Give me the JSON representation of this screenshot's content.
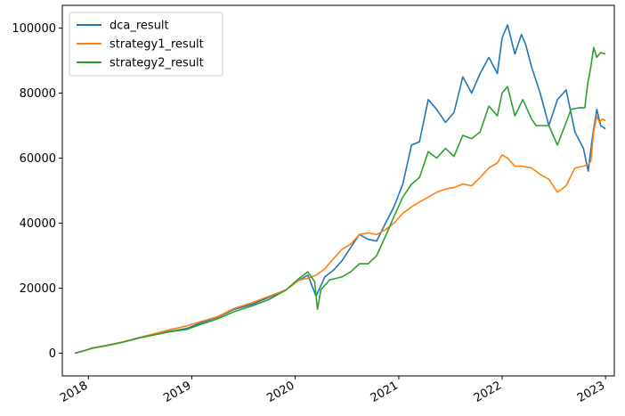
{
  "chart_data": {
    "type": "line",
    "title": "",
    "xlabel": "",
    "ylabel": "",
    "xlim": [
      "2017-10-01",
      "2023-02-01"
    ],
    "ylim": [
      -7000,
      107000
    ],
    "x_ticks": [
      "2018",
      "2019",
      "2020",
      "2021",
      "2022",
      "2023"
    ],
    "y_ticks": [
      "0",
      "20000",
      "40000",
      "60000",
      "80000",
      "100000"
    ],
    "legend_position": "upper-left",
    "grid": false,
    "series": [
      {
        "name": "dca_result",
        "color": "#1f77b4",
        "points": [
          [
            "2017-11-15",
            0
          ],
          [
            "2017-12-15",
            700
          ],
          [
            "2018-01-15",
            1600
          ],
          [
            "2018-03-01",
            2300
          ],
          [
            "2018-05-01",
            3400
          ],
          [
            "2018-07-01",
            4800
          ],
          [
            "2018-09-01",
            6100
          ],
          [
            "2018-10-15",
            6700
          ],
          [
            "2018-12-15",
            7600
          ],
          [
            "2019-02-01",
            9300
          ],
          [
            "2019-04-01",
            11000
          ],
          [
            "2019-06-01",
            13500
          ],
          [
            "2019-08-01",
            15000
          ],
          [
            "2019-10-01",
            17200
          ],
          [
            "2019-12-01",
            19500
          ],
          [
            "2020-01-15",
            22500
          ],
          [
            "2020-02-15",
            24000
          ],
          [
            "2020-03-15",
            17500
          ],
          [
            "2020-04-15",
            23500
          ],
          [
            "2020-05-15",
            25500
          ],
          [
            "2020-06-15",
            28500
          ],
          [
            "2020-07-15",
            32500
          ],
          [
            "2020-08-15",
            36500
          ],
          [
            "2020-09-15",
            35000
          ],
          [
            "2020-10-15",
            34500
          ],
          [
            "2020-11-15",
            40000
          ],
          [
            "2020-12-15",
            45000
          ],
          [
            "2021-01-15",
            52000
          ],
          [
            "2021-02-15",
            64000
          ],
          [
            "2021-03-15",
            65000
          ],
          [
            "2021-04-15",
            78000
          ],
          [
            "2021-05-15",
            75000
          ],
          [
            "2021-06-15",
            71000
          ],
          [
            "2021-07-15",
            74000
          ],
          [
            "2021-08-15",
            85000
          ],
          [
            "2021-09-15",
            80000
          ],
          [
            "2021-10-15",
            86000
          ],
          [
            "2021-11-15",
            91000
          ],
          [
            "2021-12-15",
            86000
          ],
          [
            "2022-01-01",
            97000
          ],
          [
            "2022-01-20",
            101000
          ],
          [
            "2022-02-15",
            92000
          ],
          [
            "2022-03-10",
            98000
          ],
          [
            "2022-03-25",
            95000
          ],
          [
            "2022-04-15",
            88000
          ],
          [
            "2022-05-15",
            80000
          ],
          [
            "2022-06-15",
            70000
          ],
          [
            "2022-07-15",
            78000
          ],
          [
            "2022-08-15",
            81000
          ],
          [
            "2022-09-15",
            68000
          ],
          [
            "2022-10-15",
            63000
          ],
          [
            "2022-11-01",
            56000
          ],
          [
            "2022-11-15",
            66000
          ],
          [
            "2022-12-01",
            75000
          ],
          [
            "2022-12-15",
            70000
          ],
          [
            "2023-01-01",
            69000
          ]
        ]
      },
      {
        "name": "strategy1_result",
        "color": "#ff7f0e",
        "points": [
          [
            "2017-11-15",
            0
          ],
          [
            "2017-12-15",
            700
          ],
          [
            "2018-01-15",
            1600
          ],
          [
            "2018-03-01",
            2300
          ],
          [
            "2018-05-01",
            3400
          ],
          [
            "2018-07-01",
            4800
          ],
          [
            "2018-09-01",
            6200
          ],
          [
            "2018-10-15",
            7200
          ],
          [
            "2018-12-15",
            8400
          ],
          [
            "2019-02-01",
            9700
          ],
          [
            "2019-04-01",
            11200
          ],
          [
            "2019-06-01",
            13800
          ],
          [
            "2019-08-01",
            15500
          ],
          [
            "2019-10-01",
            17500
          ],
          [
            "2019-12-01",
            19500
          ],
          [
            "2020-01-15",
            22500
          ],
          [
            "2020-02-15",
            23000
          ],
          [
            "2020-03-15",
            24000
          ],
          [
            "2020-04-15",
            26000
          ],
          [
            "2020-05-15",
            29000
          ],
          [
            "2020-06-15",
            32000
          ],
          [
            "2020-07-15",
            33500
          ],
          [
            "2020-08-15",
            36500
          ],
          [
            "2020-09-15",
            37000
          ],
          [
            "2020-10-15",
            36500
          ],
          [
            "2020-11-15",
            38000
          ],
          [
            "2020-12-15",
            40000
          ],
          [
            "2021-01-15",
            43000
          ],
          [
            "2021-02-15",
            45000
          ],
          [
            "2021-03-15",
            46500
          ],
          [
            "2021-04-15",
            48000
          ],
          [
            "2021-05-15",
            49500
          ],
          [
            "2021-06-15",
            50500
          ],
          [
            "2021-07-15",
            51000
          ],
          [
            "2021-08-15",
            52000
          ],
          [
            "2021-09-15",
            51500
          ],
          [
            "2021-10-15",
            54000
          ],
          [
            "2021-11-15",
            57000
          ],
          [
            "2021-12-15",
            58500
          ],
          [
            "2022-01-01",
            61000
          ],
          [
            "2022-01-20",
            60000
          ],
          [
            "2022-02-15",
            57500
          ],
          [
            "2022-03-10",
            57500
          ],
          [
            "2022-04-15",
            57000
          ],
          [
            "2022-05-15",
            55000
          ],
          [
            "2022-06-15",
            53500
          ],
          [
            "2022-07-15",
            49500
          ],
          [
            "2022-08-15",
            51500
          ],
          [
            "2022-09-15",
            57000
          ],
          [
            "2022-10-15",
            57500
          ],
          [
            "2022-11-01",
            58000
          ],
          [
            "2022-11-10",
            59000
          ],
          [
            "2022-11-20",
            68000
          ],
          [
            "2022-12-01",
            73000
          ],
          [
            "2022-12-10",
            71000
          ],
          [
            "2022-12-20",
            72000
          ],
          [
            "2023-01-01",
            71500
          ]
        ]
      },
      {
        "name": "strategy2_result",
        "color": "#2ca02c",
        "points": [
          [
            "2017-11-15",
            0
          ],
          [
            "2017-12-15",
            700
          ],
          [
            "2018-01-15",
            1500
          ],
          [
            "2018-03-01",
            2200
          ],
          [
            "2018-05-01",
            3300
          ],
          [
            "2018-07-01",
            4700
          ],
          [
            "2018-09-01",
            5800
          ],
          [
            "2018-10-15",
            6600
          ],
          [
            "2018-12-15",
            7300
          ],
          [
            "2019-02-01",
            8800
          ],
          [
            "2019-04-01",
            10500
          ],
          [
            "2019-06-01",
            12800
          ],
          [
            "2019-08-01",
            14500
          ],
          [
            "2019-10-01",
            16500
          ],
          [
            "2019-12-01",
            19500
          ],
          [
            "2020-01-15",
            23000
          ],
          [
            "2020-02-15",
            25000
          ],
          [
            "2020-03-10",
            22000
          ],
          [
            "2020-03-20",
            13500
          ],
          [
            "2020-04-01",
            19500
          ],
          [
            "2020-05-01",
            22500
          ],
          [
            "2020-06-15",
            23500
          ],
          [
            "2020-07-15",
            25000
          ],
          [
            "2020-08-15",
            27500
          ],
          [
            "2020-09-15",
            27500
          ],
          [
            "2020-10-15",
            30000
          ],
          [
            "2020-11-15",
            36000
          ],
          [
            "2020-12-15",
            42000
          ],
          [
            "2021-01-15",
            48000
          ],
          [
            "2021-02-15",
            52000
          ],
          [
            "2021-03-15",
            54000
          ],
          [
            "2021-04-15",
            62000
          ],
          [
            "2021-05-15",
            60000
          ],
          [
            "2021-06-15",
            63000
          ],
          [
            "2021-07-15",
            60500
          ],
          [
            "2021-08-15",
            67000
          ],
          [
            "2021-09-15",
            66000
          ],
          [
            "2021-10-15",
            68000
          ],
          [
            "2021-11-15",
            76000
          ],
          [
            "2021-12-15",
            73000
          ],
          [
            "2022-01-01",
            80000
          ],
          [
            "2022-01-20",
            82000
          ],
          [
            "2022-02-15",
            73000
          ],
          [
            "2022-03-15",
            78000
          ],
          [
            "2022-04-15",
            72000
          ],
          [
            "2022-05-01",
            70000
          ],
          [
            "2022-06-15",
            70000
          ],
          [
            "2022-07-15",
            64000
          ],
          [
            "2022-08-15",
            71000
          ],
          [
            "2022-09-01",
            75000
          ],
          [
            "2022-10-01",
            75500
          ],
          [
            "2022-10-20",
            75500
          ],
          [
            "2022-10-30",
            83000
          ],
          [
            "2022-11-10",
            88000
          ],
          [
            "2022-11-20",
            94000
          ],
          [
            "2022-12-01",
            91000
          ],
          [
            "2022-12-15",
            92500
          ],
          [
            "2023-01-01",
            92000
          ]
        ]
      }
    ]
  }
}
